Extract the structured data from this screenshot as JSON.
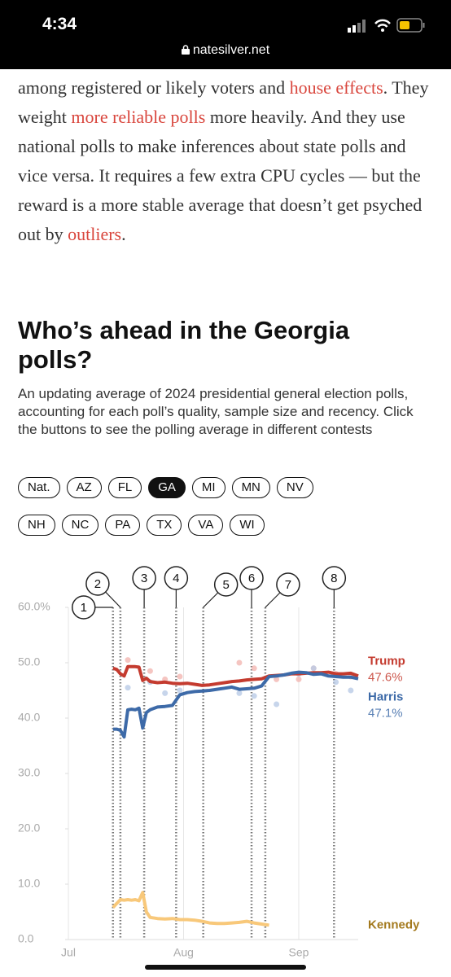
{
  "status": {
    "time": "4:34",
    "url": "natesilver.net"
  },
  "article": {
    "segments": [
      {
        "text": "among registered or likely voters and ",
        "link": false
      },
      {
        "text": "house effects",
        "link": true
      },
      {
        "text": ". They weight ",
        "link": false
      },
      {
        "text": "more reliable polls",
        "link": true
      },
      {
        "text": " more heavily. And they use national polls to make inferences about state polls and vice versa. It requires a few extra CPU cycles — but the reward is a more stable average that doesn’t get psyched out by ",
        "link": false
      },
      {
        "text": "outliers",
        "link": true
      },
      {
        "text": ".",
        "link": false
      }
    ]
  },
  "heading": {
    "title": "Who’s ahead in the Georgia polls?",
    "subtitle": "An updating average of 2024 presidential general election polls, accounting for each poll’s quality, sample size and recency. Click the buttons to see the polling average in different contests"
  },
  "buttons": {
    "labels": [
      "Nat.",
      "AZ",
      "FL",
      "GA",
      "MI",
      "MN",
      "NV",
      "NH",
      "NC",
      "PA",
      "TX",
      "VA",
      "WI"
    ],
    "selected": 3
  },
  "chart_data": {
    "type": "line",
    "x": [
      12,
      13,
      14,
      15,
      16,
      17,
      18,
      19,
      20,
      21,
      22,
      24,
      26,
      28,
      30,
      32,
      34,
      36,
      38,
      40,
      42,
      44,
      46,
      48,
      50,
      52,
      54,
      56,
      58,
      60,
      62,
      64,
      66,
      68,
      70,
      72,
      74,
      76,
      78
    ],
    "xlim": [
      0,
      78
    ],
    "xticks": [
      {
        "value": 0,
        "label": "Jul"
      },
      {
        "value": 31,
        "label": "Aug"
      },
      {
        "value": 62,
        "label": "Sep"
      }
    ],
    "ylim": [
      0,
      60
    ],
    "yticks": [
      {
        "value": 0,
        "label": "0.0"
      },
      {
        "value": 10,
        "label": "10.0"
      },
      {
        "value": 20,
        "label": "20.0"
      },
      {
        "value": 30,
        "label": "30.0"
      },
      {
        "value": 40,
        "label": "40.0"
      },
      {
        "value": 50,
        "label": "50.0"
      },
      {
        "value": 60,
        "label": "60.0%"
      }
    ],
    "grid": true,
    "series": [
      {
        "name": "Trump",
        "color": "#c43b2f",
        "label_color": "#c43b2f",
        "values": [
          49.0,
          48.8,
          48.0,
          47.6,
          49.3,
          49.3,
          49.3,
          49.2,
          46.8,
          47.2,
          46.6,
          46.4,
          46.5,
          46.3,
          46.2,
          46.3,
          46.1,
          45.9,
          46.0,
          46.2,
          46.4,
          46.6,
          46.7,
          46.9,
          47.0,
          47.1,
          47.6,
          47.7,
          47.8,
          48.0,
          48.0,
          48.1,
          48.2,
          48.2,
          48.3,
          48.0,
          48.0,
          48.1,
          47.6
        ],
        "value_labels": [
          null,
          null,
          null,
          null,
          null,
          null,
          null,
          null,
          null,
          null,
          null,
          null,
          null,
          null,
          null,
          null,
          null,
          null,
          null,
          null,
          null,
          null,
          null,
          null,
          null,
          null,
          null,
          null,
          null,
          null,
          null,
          null,
          null,
          null,
          null,
          null,
          null,
          null,
          "47.6%"
        ]
      },
      {
        "name": "Harris",
        "color": "#3d6aa8",
        "label_color": "#3d6aa8",
        "values": [
          38.0,
          38.0,
          37.8,
          36.6,
          41.5,
          41.6,
          41.5,
          41.8,
          38.2,
          41.0,
          41.5,
          42.0,
          42.1,
          42.3,
          44.2,
          44.6,
          44.8,
          44.9,
          45.0,
          45.2,
          45.4,
          45.6,
          45.2,
          45.3,
          45.4,
          45.8,
          47.5,
          47.6,
          47.8,
          48.1,
          48.3,
          48.2,
          47.9,
          48.0,
          47.6,
          47.5,
          47.4,
          47.4,
          47.1
        ],
        "value_labels": [
          null,
          null,
          null,
          null,
          null,
          null,
          null,
          null,
          null,
          null,
          null,
          null,
          null,
          null,
          null,
          null,
          null,
          null,
          null,
          null,
          null,
          null,
          null,
          null,
          null,
          null,
          null,
          null,
          null,
          null,
          null,
          null,
          null,
          null,
          null,
          null,
          null,
          null,
          "47.1%"
        ]
      },
      {
        "name": "Kennedy",
        "color": "#f8c87a",
        "label_color": "#a47a1e",
        "values": [
          5.8,
          6.5,
          7.2,
          7.1,
          7.2,
          7.1,
          7.2,
          7.0,
          8.5,
          5.0,
          4.0,
          3.8,
          3.7,
          3.8,
          3.6,
          3.6,
          3.5,
          3.3,
          3.0,
          2.9,
          2.9,
          3.0,
          3.1,
          3.3,
          3.0,
          2.8,
          2.6,
          null,
          null,
          null,
          null,
          null,
          null,
          null,
          null,
          null,
          null,
          null,
          null
        ]
      }
    ],
    "poll_points": [
      {
        "color": "#f2b7b1",
        "x": [
          16,
          22,
          26,
          30,
          46,
          50,
          56,
          62,
          66,
          72,
          76
        ],
        "values": [
          50.5,
          48.5,
          47,
          47.5,
          50,
          49,
          47,
          47,
          49,
          48,
          47.5
        ]
      },
      {
        "color": "#b9cbe6",
        "x": [
          16,
          22,
          26,
          30,
          46,
          50,
          56,
          62,
          66,
          72,
          76
        ],
        "values": [
          45.5,
          46.5,
          44.5,
          45,
          44.5,
          44,
          42.5,
          48,
          49,
          46.5,
          45
        ]
      }
    ],
    "events": [
      {
        "label": "1",
        "x": 12
      },
      {
        "label": "2",
        "x": 14
      },
      {
        "label": "3",
        "x": 20.4
      },
      {
        "label": "4",
        "x": 29
      },
      {
        "label": "5",
        "x": 36.3
      },
      {
        "label": "6",
        "x": 49.3
      },
      {
        "label": "7",
        "x": 53
      },
      {
        "label": "8",
        "x": 71.5
      }
    ]
  }
}
